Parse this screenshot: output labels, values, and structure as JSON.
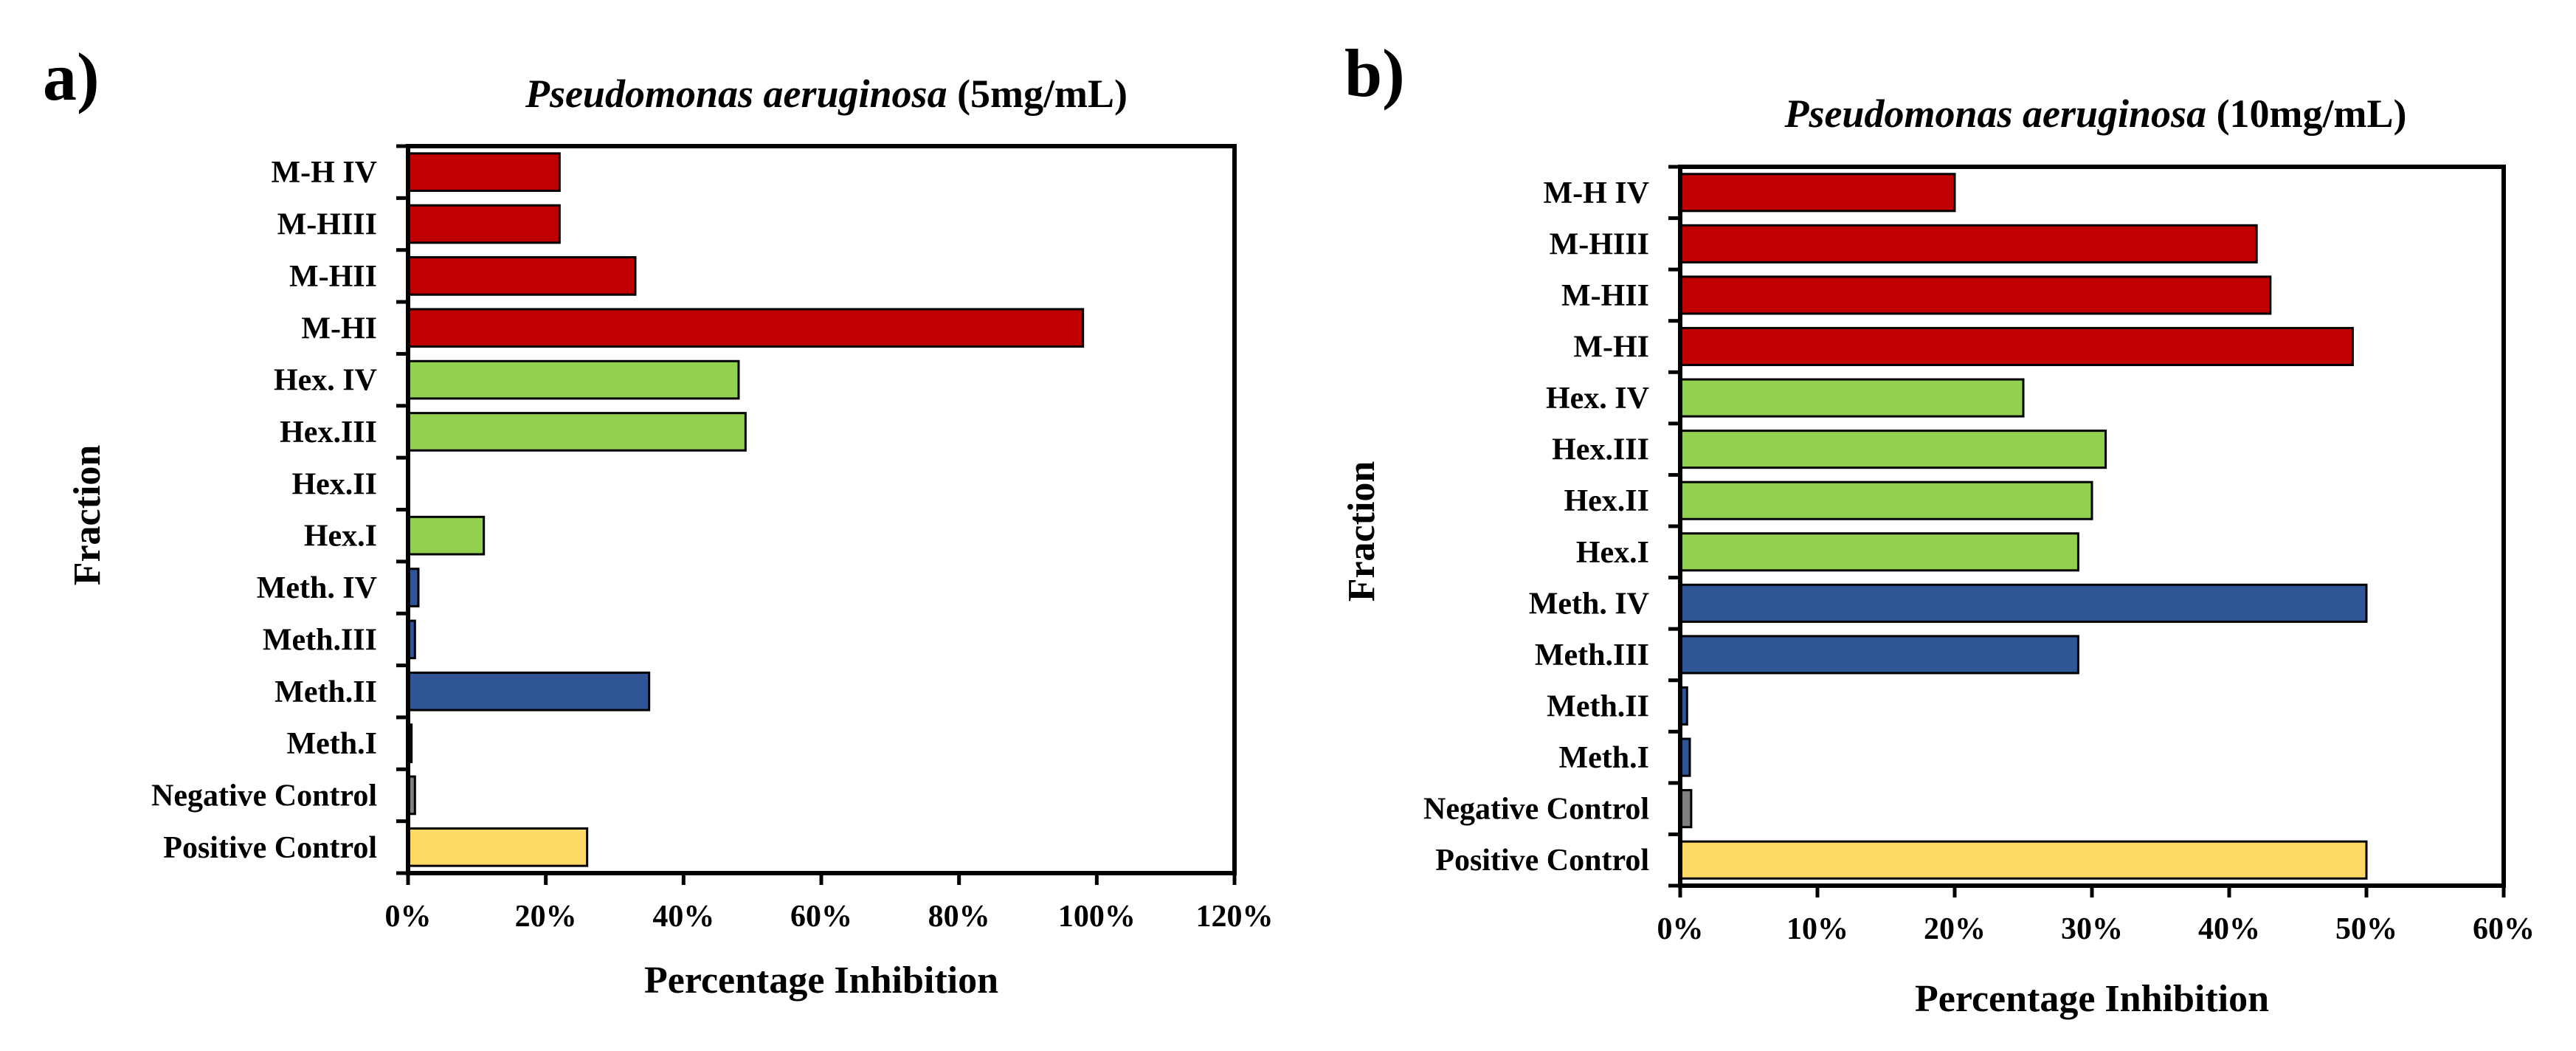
{
  "panels": [
    {
      "label": "a)",
      "title_italic": "Pseudomonas aeruginosa",
      "title_rest": " (5mg/mL)"
    },
    {
      "label": "b)",
      "title_italic": "Pseudomonas aeruginosa",
      "title_rest": " (10mg/mL)"
    }
  ],
  "colors": {
    "mh": "#c00000",
    "hex": "#92d050",
    "meth": "#2f5597",
    "negative": "#7f7f7f",
    "positive": "#ffd966"
  },
  "chart_data": [
    {
      "type": "bar",
      "orientation": "horizontal",
      "title": "Pseudomonas aeruginosa (5mg/mL)",
      "xlabel": "Percentage Inhibition",
      "ylabel": "Fraction",
      "xlim": [
        0,
        120
      ],
      "xticks": [
        "0%",
        "20%",
        "40%",
        "60%",
        "80%",
        "100%",
        "120%"
      ],
      "categories": [
        "M-H IV",
        "M-HIII",
        "M-HII",
        "M-HI",
        "Hex. IV",
        "Hex.III",
        "Hex.II",
        "Hex.I",
        "Meth. IV",
        "Meth.III",
        "Meth.II",
        "Meth.I",
        "Negative Control",
        "Positive Control"
      ],
      "values": [
        22,
        22,
        33,
        98,
        48,
        49,
        0,
        11,
        1.5,
        1,
        35,
        0.5,
        1,
        26
      ],
      "color_groups": [
        "mh",
        "mh",
        "mh",
        "mh",
        "hex",
        "hex",
        "hex",
        "hex",
        "meth",
        "meth",
        "meth",
        "meth",
        "negative",
        "positive"
      ]
    },
    {
      "type": "bar",
      "orientation": "horizontal",
      "title": "Pseudomonas aeruginosa (10mg/mL)",
      "xlabel": "Percentage Inhibition",
      "ylabel": "Fraction",
      "xlim": [
        0,
        60
      ],
      "xticks": [
        "0%",
        "10%",
        "20%",
        "30%",
        "40%",
        "50%",
        "60%"
      ],
      "categories": [
        "M-H IV",
        "M-HIII",
        "M-HII",
        "M-HI",
        "Hex. IV",
        "Hex.III",
        "Hex.II",
        "Hex.I",
        "Meth. IV",
        "Meth.III",
        "Meth.II",
        "Meth.I",
        "Negative Control",
        "Positive Control"
      ],
      "values": [
        20,
        42,
        43,
        49,
        25,
        31,
        30,
        29,
        50,
        29,
        0.5,
        0.7,
        0.8,
        50
      ],
      "color_groups": [
        "mh",
        "mh",
        "mh",
        "mh",
        "hex",
        "hex",
        "hex",
        "hex",
        "meth",
        "meth",
        "meth",
        "meth",
        "negative",
        "positive"
      ]
    }
  ]
}
